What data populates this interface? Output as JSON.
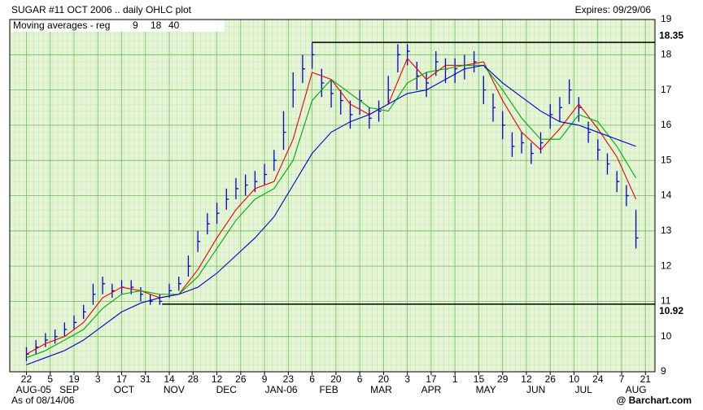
{
  "chart_data": {
    "type": "ohlc",
    "title": "SUGAR #11 OCT 2006 .. daily OHLC plot",
    "subtitle": "Expires: 09/29/06",
    "legend_title": "Moving averages - reg",
    "footer_left": "As of 08/14/06",
    "footer_right": "@ Barchart.com",
    "grid": true,
    "ylim": [
      9,
      19
    ],
    "yticks": [
      9,
      10,
      11,
      12,
      13,
      14,
      15,
      16,
      17,
      18,
      19
    ],
    "xlim": [
      -7,
      264
    ],
    "xticks": [
      {
        "value": 0,
        "label": "22"
      },
      {
        "value": 10,
        "label": "5"
      },
      {
        "value": 20,
        "label": "19"
      },
      {
        "value": 30,
        "label": "3"
      },
      {
        "value": 40,
        "label": "17"
      },
      {
        "value": 50,
        "label": "31"
      },
      {
        "value": 60,
        "label": "14"
      },
      {
        "value": 70,
        "label": "28"
      },
      {
        "value": 80,
        "label": "12"
      },
      {
        "value": 90,
        "label": "26"
      },
      {
        "value": 100,
        "label": "9"
      },
      {
        "value": 110,
        "label": "23"
      },
      {
        "value": 120,
        "label": "6"
      },
      {
        "value": 130,
        "label": "20"
      },
      {
        "value": 140,
        "label": "6"
      },
      {
        "value": 150,
        "label": "20"
      },
      {
        "value": 160,
        "label": "3"
      },
      {
        "value": 170,
        "label": "17"
      },
      {
        "value": 180,
        "label": "1"
      },
      {
        "value": 190,
        "label": "15"
      },
      {
        "value": 200,
        "label": "29"
      },
      {
        "value": 210,
        "label": "12"
      },
      {
        "value": 220,
        "label": "26"
      },
      {
        "value": 230,
        "label": "10"
      },
      {
        "value": 240,
        "label": "24"
      },
      {
        "value": 250,
        "label": "7"
      },
      {
        "value": 260,
        "label": "21"
      }
    ],
    "month_ticks": [
      {
        "value": 3,
        "label": "AUG-05"
      },
      {
        "value": 18,
        "label": "SEP"
      },
      {
        "value": 41,
        "label": "OCT"
      },
      {
        "value": 62,
        "label": "NOV"
      },
      {
        "value": 84,
        "label": "DEC"
      },
      {
        "value": 107,
        "label": "JAN-06"
      },
      {
        "value": 127,
        "label": "FEB"
      },
      {
        "value": 149,
        "label": "MAR"
      },
      {
        "value": 170,
        "label": "APR"
      },
      {
        "value": 193,
        "label": "MAY"
      },
      {
        "value": 214,
        "label": "JUN"
      },
      {
        "value": 234,
        "label": "JUL"
      },
      {
        "value": 256,
        "label": "AUG"
      }
    ],
    "levels": [
      {
        "value": 18.35,
        "label": "18.35",
        "from": 120
      },
      {
        "value": 10.92,
        "label": "10.92",
        "from": 57
      }
    ],
    "bars": {
      "color": "#0000cc",
      "x": [
        0,
        4,
        8,
        12,
        16,
        20,
        24,
        28,
        32,
        36,
        40,
        44,
        48,
        52,
        56,
        60,
        64,
        68,
        72,
        76,
        80,
        84,
        88,
        92,
        96,
        100,
        104,
        108,
        112,
        116,
        120,
        124,
        128,
        132,
        136,
        140,
        144,
        148,
        152,
        156,
        160,
        164,
        168,
        172,
        176,
        180,
        184,
        188,
        192,
        196,
        200,
        204,
        208,
        212,
        216,
        220,
        224,
        228,
        232,
        236,
        240,
        244,
        248,
        252,
        256
      ],
      "high": [
        9.7,
        9.9,
        10.1,
        10.2,
        10.4,
        10.6,
        10.9,
        11.5,
        11.7,
        11.5,
        11.6,
        11.6,
        11.4,
        11.2,
        11.2,
        11.5,
        11.7,
        12.3,
        13.0,
        13.5,
        13.8,
        14.2,
        14.5,
        14.6,
        14.7,
        14.9,
        15.3,
        16.4,
        17.5,
        18.0,
        18.35,
        17.6,
        17.3,
        17.0,
        16.7,
        17.0,
        16.5,
        16.7,
        17.4,
        18.3,
        18.3,
        17.8,
        17.5,
        18.1,
        17.9,
        17.9,
        18.0,
        18.1,
        17.4,
        16.9,
        16.4,
        15.8,
        15.8,
        15.5,
        15.8,
        16.6,
        16.8,
        17.3,
        16.8,
        16.1,
        15.6,
        15.2,
        14.7,
        14.3,
        13.6
      ],
      "low": [
        9.3,
        9.5,
        9.7,
        9.8,
        10.0,
        10.2,
        10.5,
        10.9,
        11.2,
        11.1,
        11.2,
        11.2,
        11.0,
        10.9,
        10.9,
        11.1,
        11.3,
        11.7,
        12.4,
        12.9,
        13.2,
        13.6,
        13.9,
        14.0,
        14.1,
        14.3,
        14.7,
        15.3,
        16.5,
        17.2,
        17.6,
        16.8,
        16.5,
        16.3,
        15.9,
        16.3,
        15.9,
        16.1,
        16.6,
        17.5,
        17.7,
        17.0,
        16.8,
        17.4,
        17.2,
        17.2,
        17.3,
        17.5,
        16.6,
        16.1,
        15.6,
        15.1,
        15.2,
        14.9,
        15.2,
        15.9,
        16.1,
        16.6,
        16.1,
        15.5,
        15.0,
        14.6,
        14.1,
        13.7,
        12.5
      ],
      "close": [
        9.5,
        9.7,
        9.9,
        10.0,
        10.2,
        10.4,
        10.7,
        11.2,
        11.5,
        11.3,
        11.4,
        11.4,
        11.2,
        11.0,
        11.0,
        11.3,
        11.5,
        12.0,
        12.7,
        13.2,
        13.5,
        13.9,
        14.2,
        14.3,
        14.4,
        14.6,
        15.0,
        15.8,
        17.0,
        17.6,
        18.0,
        17.2,
        16.9,
        16.7,
        16.3,
        16.7,
        16.2,
        16.4,
        17.0,
        18.0,
        18.1,
        17.4,
        17.2,
        17.8,
        17.6,
        17.6,
        17.7,
        17.8,
        17.0,
        16.5,
        16.0,
        15.4,
        15.5,
        15.2,
        15.5,
        16.3,
        16.5,
        17.0,
        16.5,
        15.8,
        15.3,
        14.9,
        14.4,
        14.0,
        12.8
      ]
    },
    "x": [
      0,
      8,
      16,
      24,
      32,
      40,
      48,
      56,
      64,
      72,
      80,
      88,
      96,
      104,
      112,
      120,
      128,
      136,
      144,
      152,
      160,
      168,
      176,
      184,
      192,
      200,
      208,
      216,
      224,
      232,
      240,
      248,
      256
    ],
    "series": [
      {
        "name": "9",
        "color": "#ee0000",
        "values": [
          9.5,
          9.8,
          10.0,
          10.4,
          11.1,
          11.4,
          11.3,
          11.1,
          11.2,
          11.9,
          12.8,
          13.6,
          14.2,
          14.4,
          15.6,
          17.5,
          17.3,
          16.6,
          16.3,
          16.6,
          17.9,
          17.3,
          17.7,
          17.7,
          17.8,
          16.7,
          15.8,
          15.3,
          15.9,
          16.6,
          15.9,
          15.1,
          13.9
        ]
      },
      {
        "name": "18",
        "color": "#00aa00",
        "values": [
          9.4,
          9.6,
          9.9,
          10.2,
          10.8,
          11.2,
          11.3,
          11.2,
          11.2,
          11.7,
          12.5,
          13.3,
          13.9,
          14.2,
          15.0,
          16.7,
          17.3,
          16.9,
          16.5,
          16.4,
          17.2,
          17.5,
          17.6,
          17.7,
          17.7,
          17.0,
          16.2,
          15.6,
          15.6,
          16.3,
          16.1,
          15.4,
          14.5
        ]
      },
      {
        "name": "40",
        "color": "#0000cc",
        "values": [
          9.2,
          9.4,
          9.6,
          9.9,
          10.3,
          10.7,
          10.95,
          11.1,
          11.2,
          11.4,
          11.8,
          12.3,
          12.8,
          13.4,
          14.3,
          15.2,
          15.8,
          16.1,
          16.3,
          16.6,
          16.9,
          17.0,
          17.3,
          17.6,
          17.7,
          17.2,
          16.8,
          16.4,
          16.1,
          16.0,
          15.8,
          15.6,
          15.4
        ]
      }
    ]
  }
}
